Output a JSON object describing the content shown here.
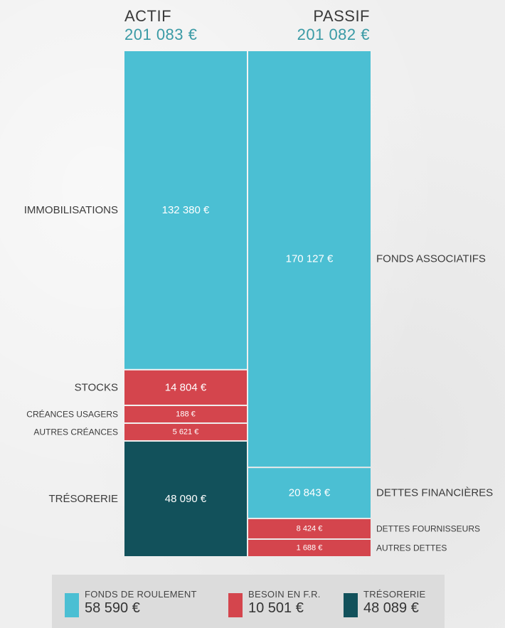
{
  "colors": {
    "fr": "#4bbfd3",
    "bfr": "#d4454d",
    "treso": "#12515b",
    "header_value": "#3a9aa5"
  },
  "header": {
    "actif_label": "ACTIF",
    "actif_total": "201 083 €",
    "passif_label": "PASSIF",
    "passif_total": "201 082 €"
  },
  "chart_data": {
    "type": "bar",
    "title": "",
    "stacks": [
      {
        "name": "ACTIF",
        "total": 201083,
        "segments": [
          {
            "label": "IMMOBILISATIONS",
            "value": 132380,
            "value_text": "132 380 €",
            "color": "fr"
          },
          {
            "label": "STOCKS",
            "value": 14804,
            "value_text": "14 804 €",
            "color": "bfr"
          },
          {
            "label": "CRÉANCES USAGERS",
            "value": 188,
            "value_text": "188 €",
            "color": "bfr"
          },
          {
            "label": "AUTRES CRÉANCES",
            "value": 5621,
            "value_text": "5 621 €",
            "color": "bfr"
          },
          {
            "label": "TRÉSORERIE",
            "value": 48090,
            "value_text": "48 090 €",
            "color": "treso"
          }
        ]
      },
      {
        "name": "PASSIF",
        "total": 201082,
        "segments": [
          {
            "label": "FONDS ASSOCIATIFS",
            "value": 170127,
            "value_text": "170 127 €",
            "color": "fr"
          },
          {
            "label": "DETTES FINANCIÈRES",
            "value": 20843,
            "value_text": "20 843 €",
            "color": "fr"
          },
          {
            "label": "DETTES FOURNISSEURS",
            "value": 8424,
            "value_text": "8 424 €",
            "color": "bfr"
          },
          {
            "label": "AUTRES DETTES",
            "value": 1688,
            "value_text": "1 688 €",
            "color": "bfr"
          }
        ]
      }
    ]
  },
  "legend": [
    {
      "label": "FONDS DE ROULEMENT",
      "value": "58 590 €",
      "color": "fr"
    },
    {
      "label": "BESOIN EN F.R.",
      "value": "10 501 €",
      "color": "bfr"
    },
    {
      "label": "TRÉSORERIE",
      "value": "48 089 €",
      "color": "treso"
    }
  ]
}
